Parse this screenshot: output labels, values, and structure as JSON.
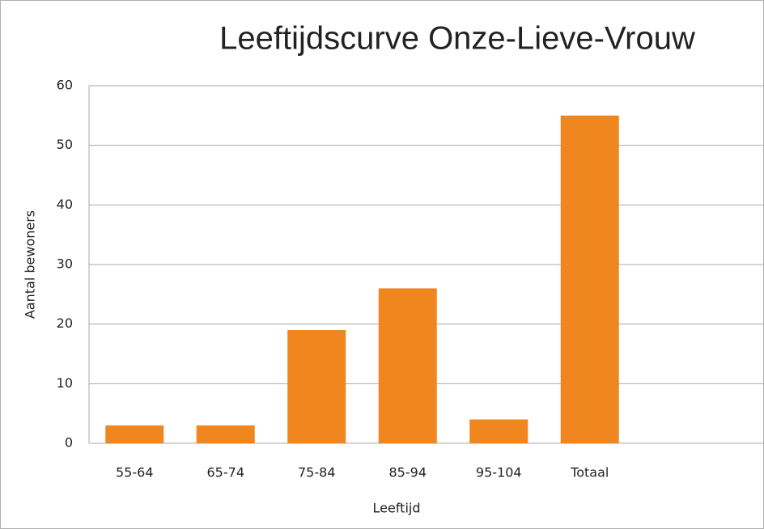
{
  "chart_data": {
    "type": "bar",
    "title": "Leeftijdscurve Onze-Lieve-Vrouw",
    "x_label": "Leeftijd",
    "y_label": "Aantal bewoners",
    "categories": [
      "55-64",
      "65-74",
      "75-84",
      "85-94",
      "95-104",
      "Totaal"
    ],
    "values": [
      3,
      3,
      19,
      26,
      4,
      55
    ],
    "color": "#ef861e",
    "ylim": [
      0,
      60
    ],
    "yticks": [
      0,
      10,
      20,
      30,
      40,
      50,
      60
    ],
    "grid": true
  }
}
